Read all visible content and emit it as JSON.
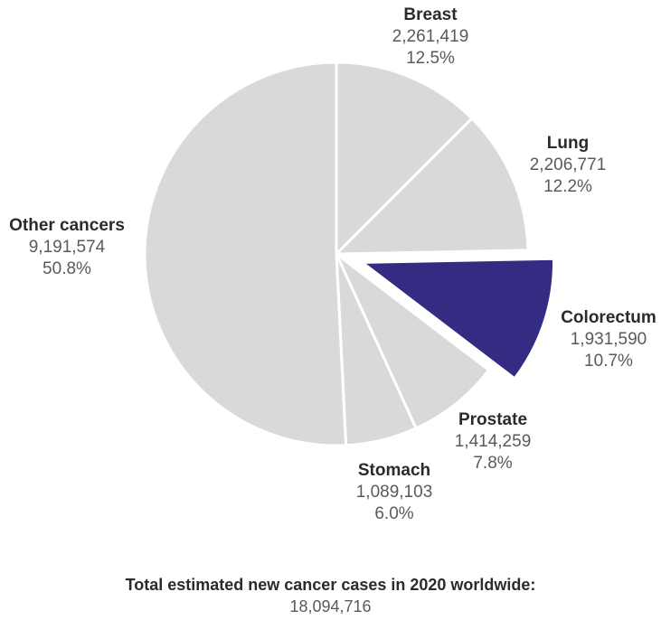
{
  "chart_data": {
    "type": "pie",
    "colors": {
      "default": "#d9d9d9",
      "highlight": "#342b82",
      "stroke": "#ffffff"
    },
    "highlighted": "Colorectum",
    "slices": [
      {
        "label": "Breast",
        "value": 2261419,
        "value_text": "2,261,419",
        "percent": "12.5%"
      },
      {
        "label": "Lung",
        "value": 2206771,
        "value_text": "2,206,771",
        "percent": "12.2%"
      },
      {
        "label": "Colorectum",
        "value": 1931590,
        "value_text": "1,931,590",
        "percent": "10.7%"
      },
      {
        "label": "Prostate",
        "value": 1414259,
        "value_text": "1,414,259",
        "percent": "7.8%"
      },
      {
        "label": "Stomach",
        "value": 1089103,
        "value_text": "1,089,103",
        "percent": "6.0%"
      },
      {
        "label": "Other cancers",
        "value": 9191574,
        "value_text": "9,191,574",
        "percent": "50.8%"
      }
    ],
    "total_title": "Total estimated new cancer cases in 2020 worldwide:",
    "total_value": "18,094,716"
  }
}
